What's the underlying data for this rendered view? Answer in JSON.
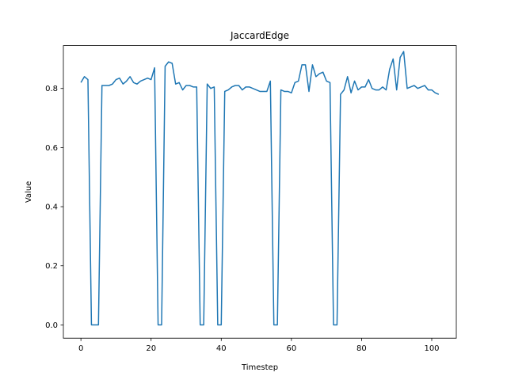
{
  "chart_data": {
    "type": "line",
    "title": "JaccardEdge",
    "xlabel": "Timestep",
    "ylabel": "Value",
    "xlim": [
      -5,
      107
    ],
    "ylim": [
      -0.045,
      0.945
    ],
    "xticks": [
      0,
      20,
      40,
      60,
      80,
      100
    ],
    "yticks": [
      0.0,
      0.2,
      0.4,
      0.6,
      0.8
    ],
    "ytick_labels": [
      "0.0",
      "0.2",
      "0.4",
      "0.6",
      "0.8"
    ],
    "grid": false,
    "line_color": "#1f77b4",
    "series": [
      {
        "x": [
          0,
          1,
          2,
          3,
          4,
          5,
          6,
          7,
          8,
          9,
          10,
          11,
          12,
          13,
          14,
          15,
          16,
          17,
          18,
          19,
          20,
          21,
          22,
          23,
          24,
          25,
          26,
          27,
          28,
          29,
          30,
          31,
          32,
          33,
          34,
          35,
          36,
          37,
          38,
          39,
          40,
          41,
          42,
          43,
          44,
          45,
          46,
          47,
          48,
          49,
          50,
          51,
          52,
          53,
          54,
          55,
          56,
          57,
          58,
          59,
          60,
          61,
          62,
          63,
          64,
          65,
          66,
          67,
          68,
          69,
          70,
          71,
          72,
          73,
          74,
          75,
          76,
          77,
          78,
          79,
          80,
          81,
          82,
          83,
          84,
          85,
          86,
          87,
          88,
          89,
          90,
          91,
          92,
          93,
          94,
          95,
          96,
          97,
          98,
          99,
          100,
          101,
          102
        ],
        "values": [
          0.82,
          0.84,
          0.83,
          0.0,
          0.0,
          0.0,
          0.81,
          0.81,
          0.81,
          0.815,
          0.83,
          0.835,
          0.815,
          0.825,
          0.84,
          0.82,
          0.815,
          0.825,
          0.83,
          0.835,
          0.83,
          0.87,
          0.0,
          0.0,
          0.875,
          0.89,
          0.885,
          0.815,
          0.82,
          0.795,
          0.81,
          0.81,
          0.805,
          0.805,
          0.0,
          0.0,
          0.815,
          0.8,
          0.805,
          0.0,
          0.0,
          0.79,
          0.795,
          0.805,
          0.81,
          0.81,
          0.795,
          0.805,
          0.805,
          0.8,
          0.795,
          0.79,
          0.79,
          0.79,
          0.825,
          0.0,
          0.0,
          0.795,
          0.79,
          0.79,
          0.785,
          0.82,
          0.825,
          0.88,
          0.88,
          0.79,
          0.88,
          0.84,
          0.85,
          0.855,
          0.825,
          0.82,
          0.0,
          0.0,
          0.78,
          0.795,
          0.84,
          0.785,
          0.825,
          0.795,
          0.805,
          0.805,
          0.83,
          0.8,
          0.795,
          0.795,
          0.805,
          0.795,
          0.865,
          0.9,
          0.795,
          0.905,
          0.925,
          0.8,
          0.805,
          0.81,
          0.8,
          0.805,
          0.81,
          0.795,
          0.795,
          0.785,
          0.78
        ]
      }
    ]
  }
}
